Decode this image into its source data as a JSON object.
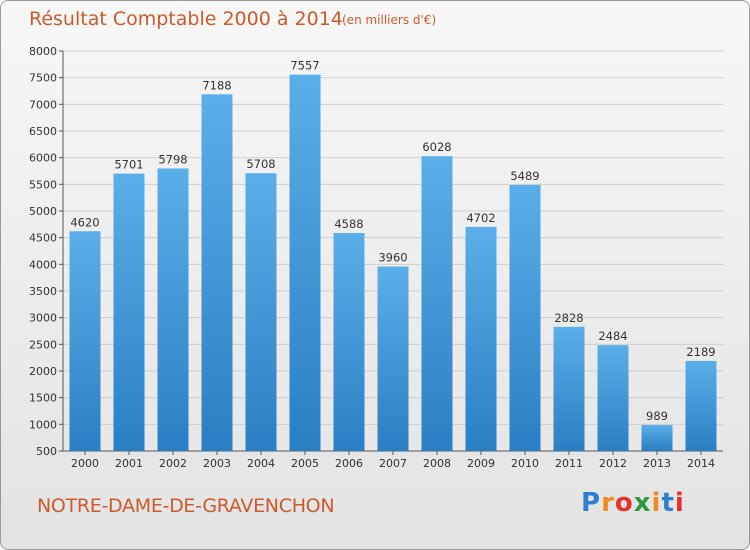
{
  "title": "Résultat Comptable 2000 à 2014",
  "subtitle": "(en milliers d'€)",
  "commune": "NOTRE-DAME-DE-GRAVENCHON",
  "logo": {
    "letters": [
      "P",
      "r",
      "o",
      "x",
      "i",
      "t",
      "i"
    ],
    "colors": [
      "#2e7fd0",
      "#f08a1c",
      "#e8312b",
      "#2e9a3c",
      "#f08a1c",
      "#2e7fd0",
      "#e8312b"
    ]
  },
  "colors": {
    "accent": "#cc5a2c",
    "bar_light": "#5aaee9",
    "bar_dark": "#2a7fc4"
  },
  "chart_data": {
    "type": "bar",
    "categories": [
      "2000",
      "2001",
      "2002",
      "2003",
      "2004",
      "2005",
      "2006",
      "2007",
      "2008",
      "2009",
      "2010",
      "2011",
      "2012",
      "2013",
      "2014"
    ],
    "values": [
      4620,
      5701,
      5798,
      7188,
      5708,
      7557,
      4588,
      3960,
      6028,
      4702,
      5489,
      2828,
      2484,
      989,
      2189
    ],
    "ylim": [
      500,
      8000
    ],
    "yticks": [
      500,
      1000,
      1500,
      2000,
      2500,
      3000,
      3500,
      4000,
      4500,
      5000,
      5500,
      6000,
      6500,
      7000,
      7500,
      8000
    ],
    "grid": true,
    "legend": "none"
  }
}
